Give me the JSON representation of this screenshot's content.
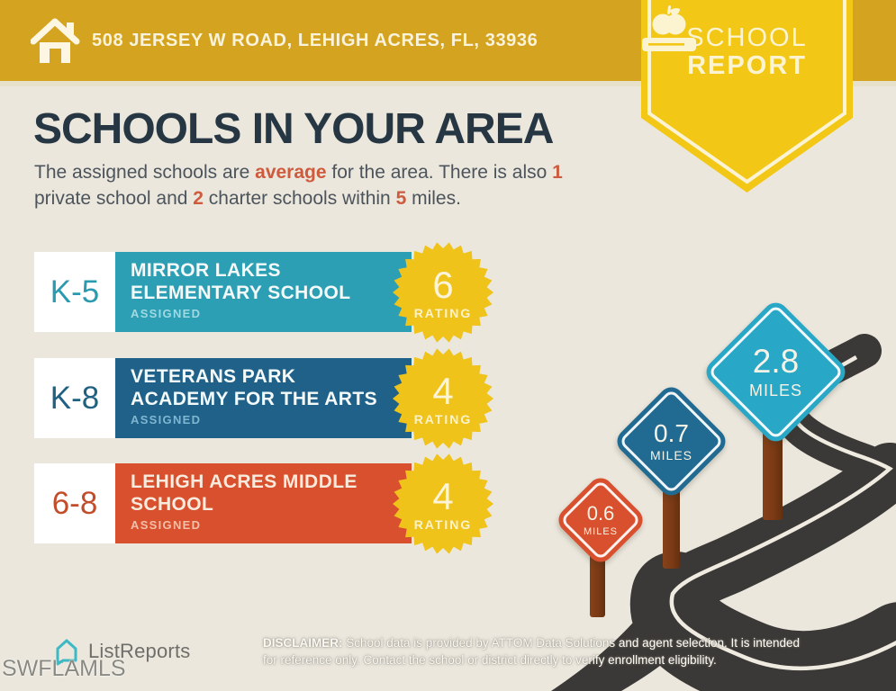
{
  "header": {
    "address": "508 JERSEY W ROAD, LEHIGH ACRES, FL, 33936"
  },
  "badge": {
    "line1": "SCHOOL",
    "line2": "REPORT"
  },
  "title": "SCHOOLS IN YOUR AREA",
  "subtitle": {
    "s0": "The assigned schools are ",
    "b0": "average",
    "s1": " for the area. There is also ",
    "b1": "1",
    "s2": " private school and ",
    "b2": "2",
    "s3": " charter schools within ",
    "b3": "5",
    "s4": " miles."
  },
  "schools": [
    {
      "grades": "K-5",
      "name_line1": "MIRROR LAKES",
      "name_line2": "ELEMENTARY SCHOOL",
      "status": "ASSIGNED",
      "rating": "6",
      "rating_label": "RATING",
      "bar_color": "#2C9FB5"
    },
    {
      "grades": "K-8",
      "name_line1": "VETERANS PARK",
      "name_line2": "ACADEMY FOR THE ARTS",
      "status": "ASSIGNED",
      "rating": "4",
      "rating_label": "RATING",
      "bar_color": "#20618A"
    },
    {
      "grades": "6-8",
      "name_line1": "LEHIGH ACRES MIDDLE",
      "name_line2": "SCHOOL",
      "status": "ASSIGNED",
      "rating": "4",
      "rating_label": "RATING",
      "bar_color": "#D8502E"
    }
  ],
  "signs": [
    {
      "distance": "0.6",
      "unit": "MILES",
      "color": "#D8502E"
    },
    {
      "distance": "0.7",
      "unit": "MILES",
      "color": "#216A91"
    },
    {
      "distance": "2.8",
      "unit": "MILES",
      "color": "#29A7C7"
    }
  ],
  "footer": {
    "logo_text": "ListReports",
    "watermark": "SWFLAMLS",
    "disclaimer_label": "DISCLAIMER:",
    "disclaimer_text": " School data is provided by ATTOM Data Solutions and agent selection. It is intended for reference only. Contact the school or district directly to verify enrollment eligibility."
  },
  "icons": {
    "header": "home-icon",
    "badge": "apple-on-book-icon",
    "logo": "listreports-house-icon"
  },
  "colors": {
    "background": "#EBE7DD",
    "header_gold": "#D4A31F",
    "badge_yellow": "#F2C716",
    "title_navy": "#263743",
    "highlight_orange": "#CE5B3D",
    "star_gold": "#EFC31A",
    "road": "#3B3937",
    "road_line": "#F0EBE1",
    "post_brown": "#7B3A15"
  }
}
